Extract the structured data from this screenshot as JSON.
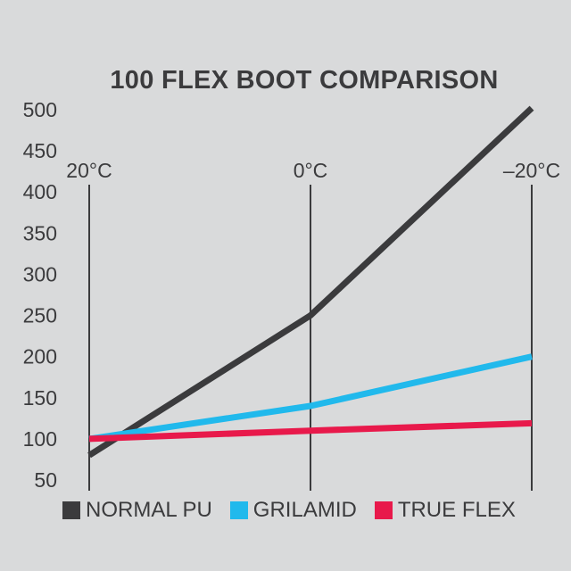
{
  "chart_data": {
    "type": "line",
    "title": "100 FLEX BOOT COMPARISON",
    "xlabel": "",
    "ylabel": "",
    "categories": [
      "20°C",
      "0°C",
      "–20°C"
    ],
    "y_ticks": [
      500,
      450,
      400,
      350,
      300,
      250,
      200,
      150,
      100,
      50
    ],
    "ylim": [
      50,
      500
    ],
    "grid": "vertical",
    "legend_position": "bottom",
    "series": [
      {
        "name": "NORMAL PU",
        "color": "#3b3b3d",
        "values": [
          80,
          250,
          502
        ]
      },
      {
        "name": "GRILAMID",
        "color": "#21b9ec",
        "values": [
          100,
          140,
          200
        ]
      },
      {
        "name": "TRUE FLEX",
        "color": "#e8194b",
        "values": [
          100,
          110,
          119
        ]
      }
    ]
  },
  "colors": {
    "background": "#d9dadb",
    "axis": "#3b3b3d"
  }
}
